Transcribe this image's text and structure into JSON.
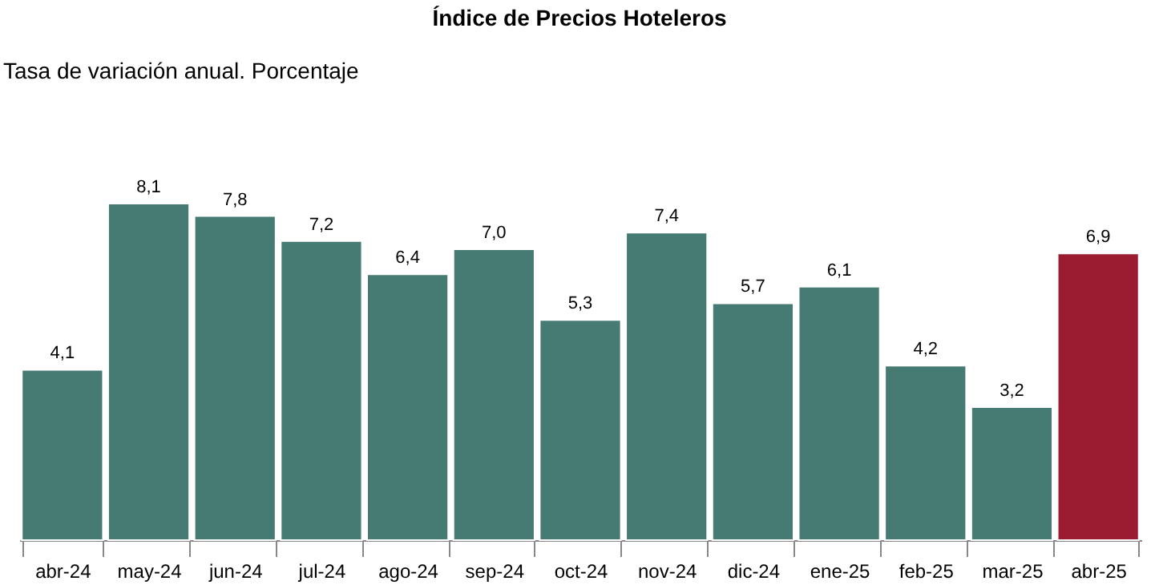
{
  "chart_data": {
    "type": "bar",
    "title": "Índice de Precios Hoteleros",
    "subtitle": "Tasa de variación anual. Porcentaje",
    "categories": [
      "abr-24",
      "may-24",
      "jun-24",
      "jul-24",
      "ago-24",
      "sep-24",
      "oct-24",
      "nov-24",
      "dic-24",
      "ene-25",
      "feb-25",
      "mar-25",
      "abr-25"
    ],
    "values": [
      4.1,
      8.1,
      7.8,
      7.2,
      6.4,
      7.0,
      5.3,
      7.4,
      5.7,
      6.1,
      4.2,
      3.2,
      6.9
    ],
    "value_labels": [
      "4,1",
      "8,1",
      "7,8",
      "7,2",
      "6,4",
      "7,0",
      "5,3",
      "7,4",
      "5,7",
      "6,1",
      "4,2",
      "3,2",
      "6,9"
    ],
    "colors": [
      "#457b72",
      "#457b72",
      "#457b72",
      "#457b72",
      "#457b72",
      "#457b72",
      "#457b72",
      "#457b72",
      "#457b72",
      "#457b72",
      "#457b72",
      "#457b72",
      "#9b1b30"
    ]
  }
}
